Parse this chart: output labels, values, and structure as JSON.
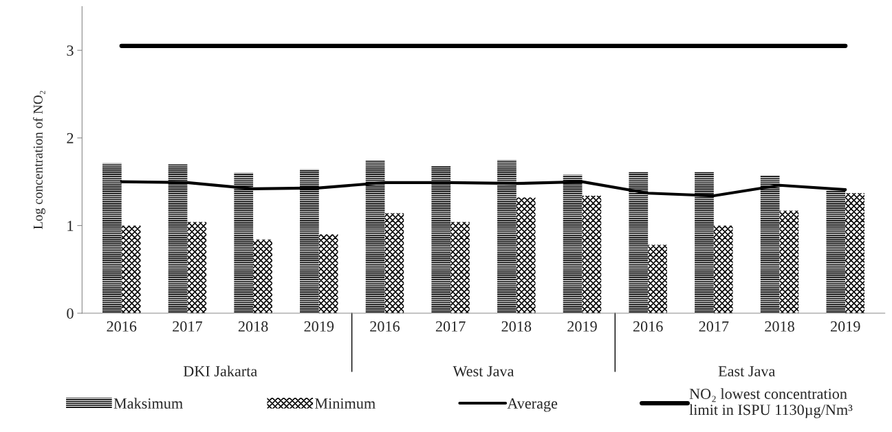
{
  "chart_data": {
    "type": "bar",
    "ylabel": "Log concentration of NO₂",
    "categories": [
      "2016",
      "2017",
      "2018",
      "2019",
      "2016",
      "2017",
      "2018",
      "2019",
      "2016",
      "2017",
      "2018",
      "2019"
    ],
    "annotations": [
      "DKI Jakarta",
      "West Java",
      "East Java"
    ],
    "series": [
      {
        "name": "Maksimum",
        "color": "#000000",
        "values": [
          1.71,
          1.7,
          1.6,
          1.64,
          1.74,
          1.68,
          1.75,
          1.58,
          1.61,
          1.61,
          1.57,
          1.4
        ]
      },
      {
        "name": "Minimum",
        "color": "#000000",
        "values": [
          1.0,
          1.04,
          0.84,
          0.9,
          1.14,
          1.04,
          1.32,
          1.34,
          0.78,
          1.0,
          1.17,
          1.37
        ]
      },
      {
        "name": "Average",
        "type": "line",
        "color": "#000000",
        "values": [
          1.5,
          1.49,
          1.42,
          1.43,
          1.49,
          1.49,
          1.48,
          1.5,
          1.37,
          1.34,
          1.46,
          1.41
        ]
      },
      {
        "name": "NO₂ lowest concentration limit in ISPU 1130µg/Nm³",
        "type": "line",
        "color": "#000000",
        "values": [
          3.05,
          3.05,
          3.05,
          3.05,
          3.05,
          3.05,
          3.05,
          3.05,
          3.05,
          3.05,
          3.05,
          3.05
        ]
      }
    ],
    "ylim": [
      0,
      3.5
    ],
    "yticks": [
      0,
      1,
      2,
      3
    ],
    "grid": false,
    "legend": "bottom",
    "marker": "none",
    "line_style": "solid"
  }
}
